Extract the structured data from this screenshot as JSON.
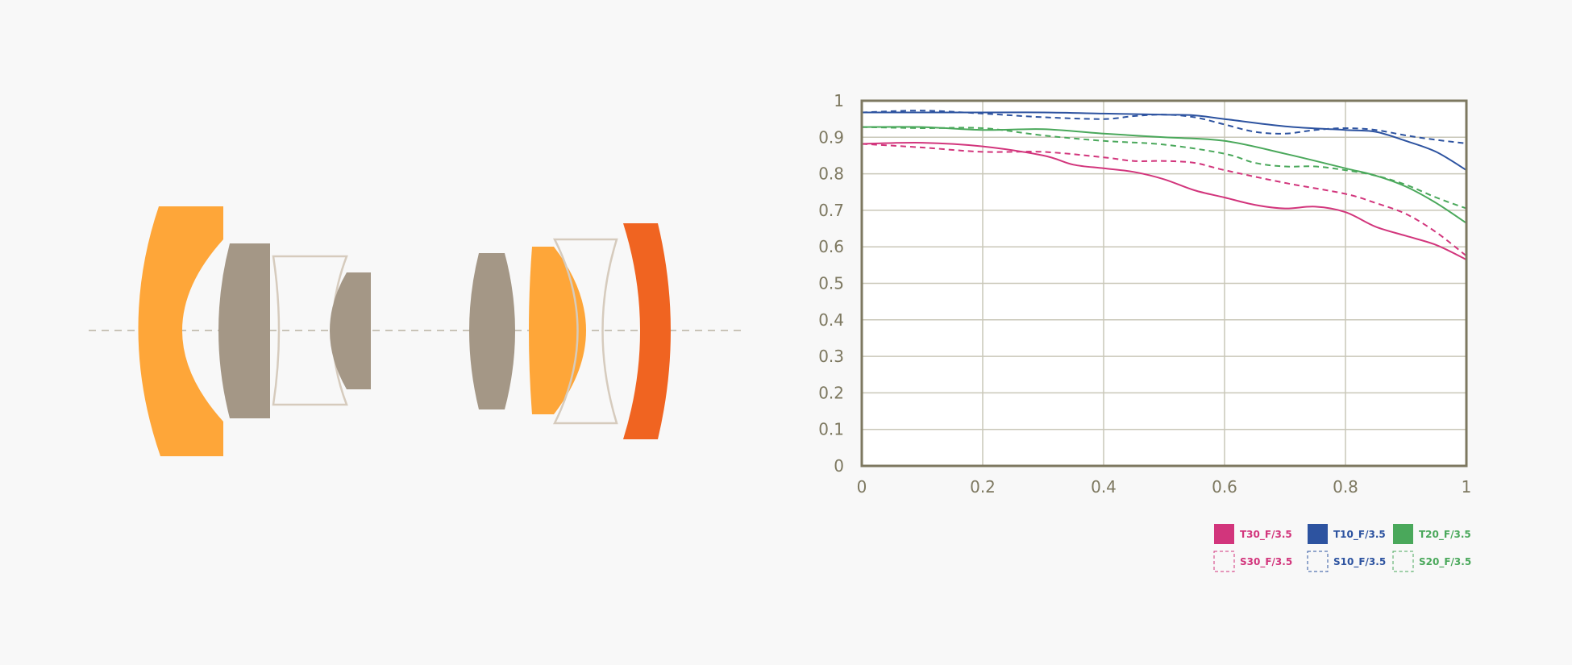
{
  "colors": {
    "background": "#f8f8f8",
    "axis": "#7d7860",
    "grid": "#c9c7b8",
    "tick_text": "#7d7860",
    "lens_orange": "#fea639",
    "lens_dark_orange": "#f06421",
    "lens_taupe": "#a49786",
    "lens_outline": "#d6cbbd",
    "optical_axis": "#b9b2a3"
  },
  "lens_diagram": {
    "elements": [
      {
        "kind": "concave-meniscus",
        "color": "lens_orange"
      },
      {
        "kind": "plano-convex",
        "color": "lens_taupe"
      },
      {
        "kind": "biconcave-outline",
        "color": "lens_outline"
      },
      {
        "kind": "concave-plano",
        "color": "lens_taupe"
      },
      {
        "kind": "biconvex",
        "color": "lens_taupe"
      },
      {
        "kind": "convex-plano",
        "color": "lens_orange"
      },
      {
        "kind": "biconcave-outline",
        "color": "lens_outline"
      },
      {
        "kind": "meniscus",
        "color": "lens_dark_orange"
      }
    ]
  },
  "chart_data": {
    "type": "line",
    "title": "",
    "xlabel": "",
    "ylabel": "",
    "xlim": [
      0,
      1
    ],
    "ylim": [
      0,
      1
    ],
    "x_ticks": [
      "0",
      "0.2",
      "0.4",
      "0.6",
      "0.8",
      "1"
    ],
    "y_ticks": [
      "0",
      "0.1",
      "0.2",
      "0.3",
      "0.4",
      "0.5",
      "0.6",
      "0.7",
      "0.8",
      "0.9",
      "1"
    ],
    "grid": true,
    "legend_position": "bottom-right",
    "series": [
      {
        "name": "T30_F/3.5",
        "color": "#d2357c",
        "dash": false,
        "points": [
          [
            0,
            0.882
          ],
          [
            0.1,
            0.885
          ],
          [
            0.2,
            0.875
          ],
          [
            0.3,
            0.85
          ],
          [
            0.35,
            0.825
          ],
          [
            0.4,
            0.815
          ],
          [
            0.45,
            0.805
          ],
          [
            0.5,
            0.785
          ],
          [
            0.55,
            0.755
          ],
          [
            0.6,
            0.735
          ],
          [
            0.65,
            0.715
          ],
          [
            0.7,
            0.705
          ],
          [
            0.75,
            0.71
          ],
          [
            0.8,
            0.695
          ],
          [
            0.85,
            0.655
          ],
          [
            0.9,
            0.63
          ],
          [
            0.95,
            0.605
          ],
          [
            1,
            0.565
          ]
        ]
      },
      {
        "name": "T10_F/3.5",
        "color": "#2d53a0",
        "dash": false,
        "points": [
          [
            0,
            0.968
          ],
          [
            0.2,
            0.968
          ],
          [
            0.3,
            0.968
          ],
          [
            0.4,
            0.965
          ],
          [
            0.5,
            0.962
          ],
          [
            0.55,
            0.96
          ],
          [
            0.6,
            0.95
          ],
          [
            0.7,
            0.93
          ],
          [
            0.8,
            0.92
          ],
          [
            0.85,
            0.915
          ],
          [
            0.9,
            0.89
          ],
          [
            0.95,
            0.86
          ],
          [
            1,
            0.81
          ]
        ]
      },
      {
        "name": "T20_F/3.5",
        "color": "#4aa85b",
        "dash": false,
        "points": [
          [
            0,
            0.928
          ],
          [
            0.1,
            0.928
          ],
          [
            0.2,
            0.92
          ],
          [
            0.3,
            0.922
          ],
          [
            0.4,
            0.91
          ],
          [
            0.5,
            0.9
          ],
          [
            0.6,
            0.89
          ],
          [
            0.7,
            0.855
          ],
          [
            0.8,
            0.815
          ],
          [
            0.85,
            0.795
          ],
          [
            0.9,
            0.765
          ],
          [
            0.95,
            0.72
          ],
          [
            1,
            0.665
          ]
        ]
      },
      {
        "name": "S30_F/3.5",
        "color": "#d2357c",
        "dash": true,
        "points": [
          [
            0,
            0.882
          ],
          [
            0.1,
            0.872
          ],
          [
            0.2,
            0.86
          ],
          [
            0.3,
            0.86
          ],
          [
            0.4,
            0.845
          ],
          [
            0.45,
            0.835
          ],
          [
            0.5,
            0.835
          ],
          [
            0.55,
            0.83
          ],
          [
            0.6,
            0.81
          ],
          [
            0.7,
            0.775
          ],
          [
            0.8,
            0.745
          ],
          [
            0.85,
            0.72
          ],
          [
            0.9,
            0.69
          ],
          [
            0.95,
            0.64
          ],
          [
            1,
            0.575
          ]
        ]
      },
      {
        "name": "S10_F/3.5",
        "color": "#2d53a0",
        "dash": true,
        "points": [
          [
            0,
            0.968
          ],
          [
            0.1,
            0.973
          ],
          [
            0.2,
            0.965
          ],
          [
            0.3,
            0.955
          ],
          [
            0.4,
            0.95
          ],
          [
            0.45,
            0.958
          ],
          [
            0.5,
            0.962
          ],
          [
            0.55,
            0.955
          ],
          [
            0.6,
            0.935
          ],
          [
            0.65,
            0.915
          ],
          [
            0.7,
            0.91
          ],
          [
            0.75,
            0.92
          ],
          [
            0.8,
            0.925
          ],
          [
            0.85,
            0.92
          ],
          [
            0.9,
            0.905
          ],
          [
            0.95,
            0.893
          ],
          [
            1,
            0.883
          ]
        ]
      },
      {
        "name": "S20_F/3.5",
        "color": "#4aa85b",
        "dash": true,
        "points": [
          [
            0,
            0.928
          ],
          [
            0.1,
            0.925
          ],
          [
            0.2,
            0.925
          ],
          [
            0.3,
            0.905
          ],
          [
            0.4,
            0.89
          ],
          [
            0.5,
            0.88
          ],
          [
            0.6,
            0.855
          ],
          [
            0.65,
            0.83
          ],
          [
            0.7,
            0.82
          ],
          [
            0.75,
            0.82
          ],
          [
            0.8,
            0.81
          ],
          [
            0.85,
            0.795
          ],
          [
            0.9,
            0.77
          ],
          [
            0.95,
            0.735
          ],
          [
            1,
            0.705
          ]
        ]
      }
    ]
  }
}
